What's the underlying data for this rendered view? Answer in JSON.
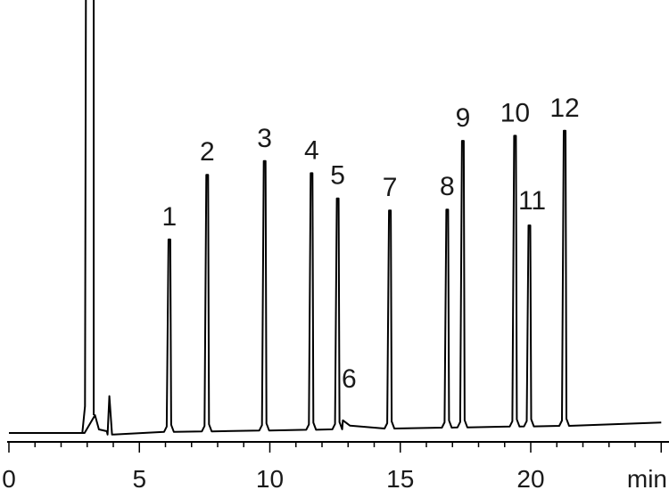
{
  "chart_data": {
    "type": "line",
    "title": "",
    "xlabel": "",
    "ylabel": "",
    "x_unit": "min",
    "xlim": [
      0,
      25
    ],
    "x_ticks": [
      "0",
      "5",
      "10",
      "15",
      "20"
    ],
    "grid": false,
    "legend": "none",
    "line_color": "#000000",
    "solvent_peak": {
      "start": 2.95,
      "end": 3.25,
      "height": "off-scale"
    },
    "minor_peak": {
      "retention_time": 3.85,
      "height": 0.2
    },
    "peaks": [
      {
        "label": "1",
        "retention_time": 6.15,
        "height": 0.45
      },
      {
        "label": "2",
        "retention_time": 7.6,
        "height": 0.6
      },
      {
        "label": "3",
        "retention_time": 9.8,
        "height": 0.63
      },
      {
        "label": "4",
        "retention_time": 11.6,
        "height": 0.6
      },
      {
        "label": "5",
        "retention_time": 12.6,
        "height": 0.54
      },
      {
        "label": "6",
        "retention_time": 12.8,
        "height": 0.05
      },
      {
        "label": "7",
        "retention_time": 14.6,
        "height": 0.51
      },
      {
        "label": "8",
        "retention_time": 16.8,
        "height": 0.51
      },
      {
        "label": "9",
        "retention_time": 17.4,
        "height": 0.67
      },
      {
        "label": "10",
        "retention_time": 19.4,
        "height": 0.68
      },
      {
        "label": "11",
        "retention_time": 19.95,
        "height": 0.47
      },
      {
        "label": "12",
        "retention_time": 21.3,
        "height": 0.69
      }
    ]
  }
}
